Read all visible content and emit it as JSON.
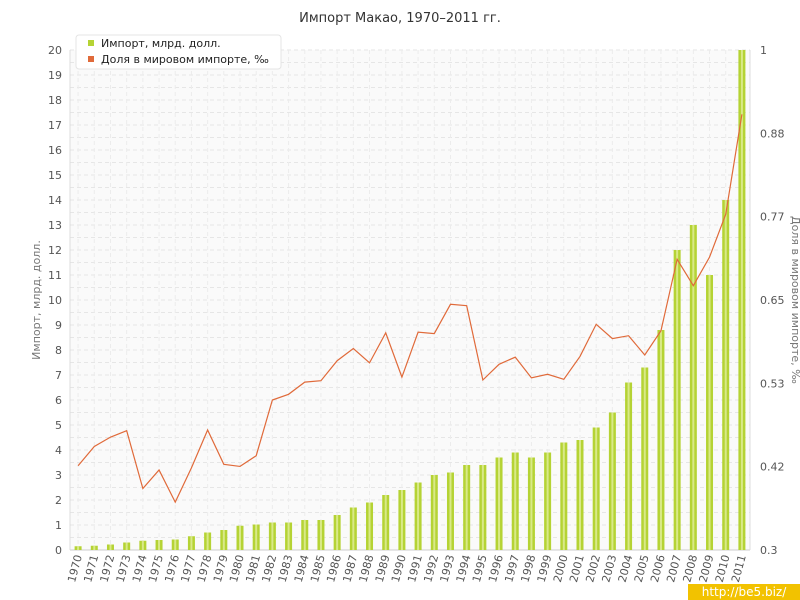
{
  "chart_data": {
    "type": "bar",
    "title": "Импорт Макао, 1970–2011 гг.",
    "xlabel": "",
    "ylabel": "Импорт, млрд. долл.",
    "y2label": "Доля в мировом импорте, ‰",
    "ylim": [
      0,
      20
    ],
    "y2lim": [
      0.3,
      1
    ],
    "y_ticks": [
      "0",
      "1",
      "2",
      "3",
      "4",
      "5",
      "6",
      "7",
      "8",
      "9",
      "10",
      "11",
      "12",
      "13",
      "14",
      "15",
      "16",
      "17",
      "18",
      "19",
      "20"
    ],
    "y2_ticks": [
      "0.3",
      "0.42",
      "0.53",
      "0.65",
      "0.77",
      "0.88",
      "1"
    ],
    "grid": true,
    "legend_position": "top-left",
    "categories": [
      "1970",
      "1971",
      "1972",
      "1973",
      "1974",
      "1975",
      "1976",
      "1977",
      "1978",
      "1979",
      "1980",
      "1981",
      "1982",
      "1983",
      "1984",
      "1985",
      "1986",
      "1987",
      "1988",
      "1989",
      "1990",
      "1991",
      "1992",
      "1993",
      "1994",
      "1995",
      "1996",
      "1997",
      "1998",
      "1999",
      "2000",
      "2001",
      "2002",
      "2003",
      "2004",
      "2005",
      "2006",
      "2007",
      "2008",
      "2009",
      "2010",
      "2011"
    ],
    "series": [
      {
        "name": "Импорт, млрд. долл.",
        "type": "bar",
        "axis": "left",
        "color": "#b5d334",
        "values": [
          0.15,
          0.17,
          0.22,
          0.3,
          0.37,
          0.4,
          0.42,
          0.55,
          0.7,
          0.8,
          0.97,
          1.02,
          1.1,
          1.1,
          1.2,
          1.2,
          1.4,
          1.7,
          1.9,
          2.2,
          2.4,
          2.7,
          3.0,
          3.1,
          3.4,
          3.4,
          3.7,
          3.9,
          3.7,
          3.9,
          4.3,
          4.4,
          4.9,
          5.5,
          6.7,
          7.3,
          8.8,
          12.0,
          13.0,
          11.0,
          14.0,
          20.0
        ]
      },
      {
        "name": "Доля в мировом импорте, ‰",
        "type": "line",
        "axis": "right",
        "color": "#e06a3a",
        "values": [
          0.418,
          0.445,
          0.458,
          0.467,
          0.386,
          0.412,
          0.367,
          0.415,
          0.468,
          0.42,
          0.417,
          0.432,
          0.51,
          0.518,
          0.535,
          0.537,
          0.565,
          0.582,
          0.562,
          0.604,
          0.542,
          0.605,
          0.603,
          0.644,
          0.642,
          0.538,
          0.56,
          0.57,
          0.541,
          0.546,
          0.539,
          0.571,
          0.616,
          0.596,
          0.6,
          0.573,
          0.607,
          0.707,
          0.67,
          0.71,
          0.77,
          0.91
        ]
      }
    ]
  },
  "watermark": "http://be5.biz/"
}
